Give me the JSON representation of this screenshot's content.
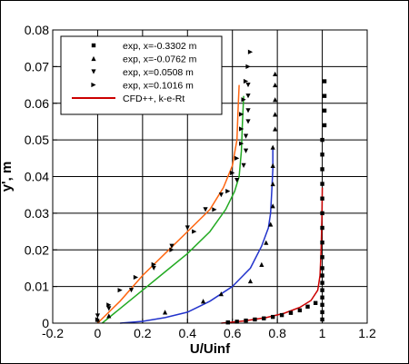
{
  "chart_data": {
    "type": "scatter",
    "xlabel": "U/Uinf",
    "ylabel": "y', m",
    "xlim": [
      -0.2,
      1.2
    ],
    "ylim": [
      0,
      0.08
    ],
    "xticks": [
      "-0.2",
      "0",
      "0.2",
      "0.4",
      "0.6",
      "0.8",
      "1",
      "1.2"
    ],
    "yticks": [
      "0",
      "0.01",
      "0.02",
      "0.03",
      "0.04",
      "0.05",
      "0.06",
      "0.07",
      "0.08"
    ],
    "grid": true,
    "legend_position": "top-left",
    "legend": [
      {
        "label": "exp, x=-0.3302 m",
        "marker": "square"
      },
      {
        "label": "exp, x=-0.0762 m",
        "marker": "triangle-up"
      },
      {
        "label": "exp, x=0.0508 m",
        "marker": "triangle-down"
      },
      {
        "label": "exp, x=0.1016 m",
        "marker": "triangle-right"
      },
      {
        "label": "CFD++, k-e-Rt",
        "marker": "line",
        "color": "#cc0000"
      }
    ],
    "series": [
      {
        "name": "exp, x=-0.3302 m",
        "kind": "points",
        "marker": "square",
        "color": "#000000",
        "points": [
          [
            1.0,
            0.001
          ],
          [
            1.0,
            0.003
          ],
          [
            1.0,
            0.005
          ],
          [
            1.0,
            0.007
          ],
          [
            1.0,
            0.009
          ],
          [
            1.0,
            0.011
          ],
          [
            1.0,
            0.013
          ],
          [
            1.0,
            0.015
          ],
          [
            1.0,
            0.018
          ],
          [
            1.0,
            0.022
          ],
          [
            1.0,
            0.026
          ],
          [
            1.0,
            0.03
          ],
          [
            1.0,
            0.034
          ],
          [
            1.0,
            0.038
          ],
          [
            1.0,
            0.042
          ],
          [
            1.0,
            0.046
          ],
          [
            1.0,
            0.05
          ],
          [
            1.01,
            0.054
          ],
          [
            1.01,
            0.058
          ],
          [
            1.01,
            0.062
          ],
          [
            1.01,
            0.066
          ],
          [
            0.97,
            0.0055
          ],
          [
            0.935,
            0.0045
          ],
          [
            0.9,
            0.0035
          ],
          [
            0.86,
            0.0028
          ],
          [
            0.82,
            0.0022
          ],
          [
            0.78,
            0.0017
          ],
          [
            0.74,
            0.0013
          ],
          [
            0.7,
            0.001
          ],
          [
            0.66,
            0.0007
          ],
          [
            0.62,
            0.0004
          ],
          [
            0.58,
            0.0002
          ]
        ]
      },
      {
        "name": "exp, x=-0.0762 m",
        "kind": "points",
        "marker": "triangle-up",
        "color": "#000000",
        "points": [
          [
            0.0,
            0.001
          ],
          [
            0.05,
            0.002
          ],
          [
            0.3,
            0.003
          ],
          [
            0.47,
            0.006
          ],
          [
            0.55,
            0.008
          ],
          [
            0.68,
            0.0115
          ],
          [
            0.73,
            0.016
          ],
          [
            0.75,
            0.022
          ],
          [
            0.77,
            0.027
          ],
          [
            0.78,
            0.032
          ],
          [
            0.78,
            0.038
          ],
          [
            0.78,
            0.043
          ],
          [
            0.78,
            0.048
          ],
          [
            0.79,
            0.053
          ],
          [
            0.79,
            0.057
          ],
          [
            0.79,
            0.061
          ],
          [
            0.79,
            0.065
          ],
          [
            0.79,
            0.068
          ]
        ]
      },
      {
        "name": "exp, x=0.0508 m",
        "kind": "points",
        "marker": "triangle-down",
        "color": "#000000",
        "points": [
          [
            0.0,
            0.002
          ],
          [
            0.05,
            0.004
          ],
          [
            0.15,
            0.009
          ],
          [
            0.25,
            0.015
          ],
          [
            0.33,
            0.021
          ],
          [
            0.4,
            0.026
          ],
          [
            0.48,
            0.031
          ],
          [
            0.55,
            0.035
          ],
          [
            0.62,
            0.039
          ],
          [
            0.65,
            0.043
          ],
          [
            0.66,
            0.047
          ],
          [
            0.66,
            0.051
          ],
          [
            0.67,
            0.055
          ],
          [
            0.67,
            0.058
          ],
          [
            0.67,
            0.062
          ],
          [
            0.67,
            0.065
          ]
        ]
      },
      {
        "name": "exp, x=0.1016 m",
        "kind": "points",
        "marker": "triangle-right",
        "color": "#000000",
        "points": [
          [
            0.0,
            0.001
          ],
          [
            0.05,
            0.005
          ],
          [
            0.1,
            0.009
          ],
          [
            0.17,
            0.0125
          ],
          [
            0.25,
            0.016
          ],
          [
            0.33,
            0.02
          ],
          [
            0.43,
            0.025
          ],
          [
            0.52,
            0.031
          ],
          [
            0.58,
            0.036
          ],
          [
            0.6,
            0.041
          ],
          [
            0.62,
            0.045
          ],
          [
            0.64,
            0.049
          ],
          [
            0.64,
            0.053
          ],
          [
            0.64,
            0.057
          ],
          [
            0.65,
            0.061
          ],
          [
            0.66,
            0.066
          ],
          [
            0.67,
            0.07
          ],
          [
            0.68,
            0.074
          ]
        ]
      },
      {
        "name": "CFD++, k-e-Rt",
        "kind": "line",
        "color": "#cc0000",
        "points": [
          [
            0.55,
            0.0
          ],
          [
            0.65,
            0.0006
          ],
          [
            0.75,
            0.0015
          ],
          [
            0.83,
            0.0027
          ],
          [
            0.9,
            0.0043
          ],
          [
            0.95,
            0.0062
          ],
          [
            0.98,
            0.009
          ],
          [
            0.99,
            0.013
          ],
          [
            0.995,
            0.02
          ],
          [
            0.998,
            0.028
          ],
          [
            1.0,
            0.037
          ]
        ]
      },
      {
        "name": "",
        "kind": "line",
        "color": "#2233cc",
        "points": [
          [
            0.1,
            0.0
          ],
          [
            0.2,
            0.0005
          ],
          [
            0.3,
            0.0015
          ],
          [
            0.4,
            0.003
          ],
          [
            0.5,
            0.006
          ],
          [
            0.6,
            0.01
          ],
          [
            0.68,
            0.015
          ],
          [
            0.73,
            0.021
          ],
          [
            0.76,
            0.026
          ],
          [
            0.77,
            0.03
          ],
          [
            0.775,
            0.036
          ],
          [
            0.78,
            0.042
          ],
          [
            0.78,
            0.048
          ]
        ]
      },
      {
        "name": "",
        "kind": "line",
        "color": "#22aa22",
        "points": [
          [
            0.02,
            0.0
          ],
          [
            0.1,
            0.004
          ],
          [
            0.2,
            0.009
          ],
          [
            0.3,
            0.014
          ],
          [
            0.4,
            0.019
          ],
          [
            0.5,
            0.025
          ],
          [
            0.57,
            0.031
          ],
          [
            0.61,
            0.036
          ],
          [
            0.63,
            0.04
          ],
          [
            0.64,
            0.047
          ],
          [
            0.645,
            0.055
          ],
          [
            0.65,
            0.062
          ]
        ]
      },
      {
        "name": "",
        "kind": "line",
        "color": "#ff6611",
        "points": [
          [
            0.0,
            0.0
          ],
          [
            0.1,
            0.006
          ],
          [
            0.2,
            0.013
          ],
          [
            0.3,
            0.019
          ],
          [
            0.4,
            0.025
          ],
          [
            0.5,
            0.031
          ],
          [
            0.56,
            0.037
          ],
          [
            0.6,
            0.043
          ],
          [
            0.62,
            0.05
          ],
          [
            0.625,
            0.058
          ],
          [
            0.63,
            0.065
          ]
        ]
      }
    ]
  }
}
